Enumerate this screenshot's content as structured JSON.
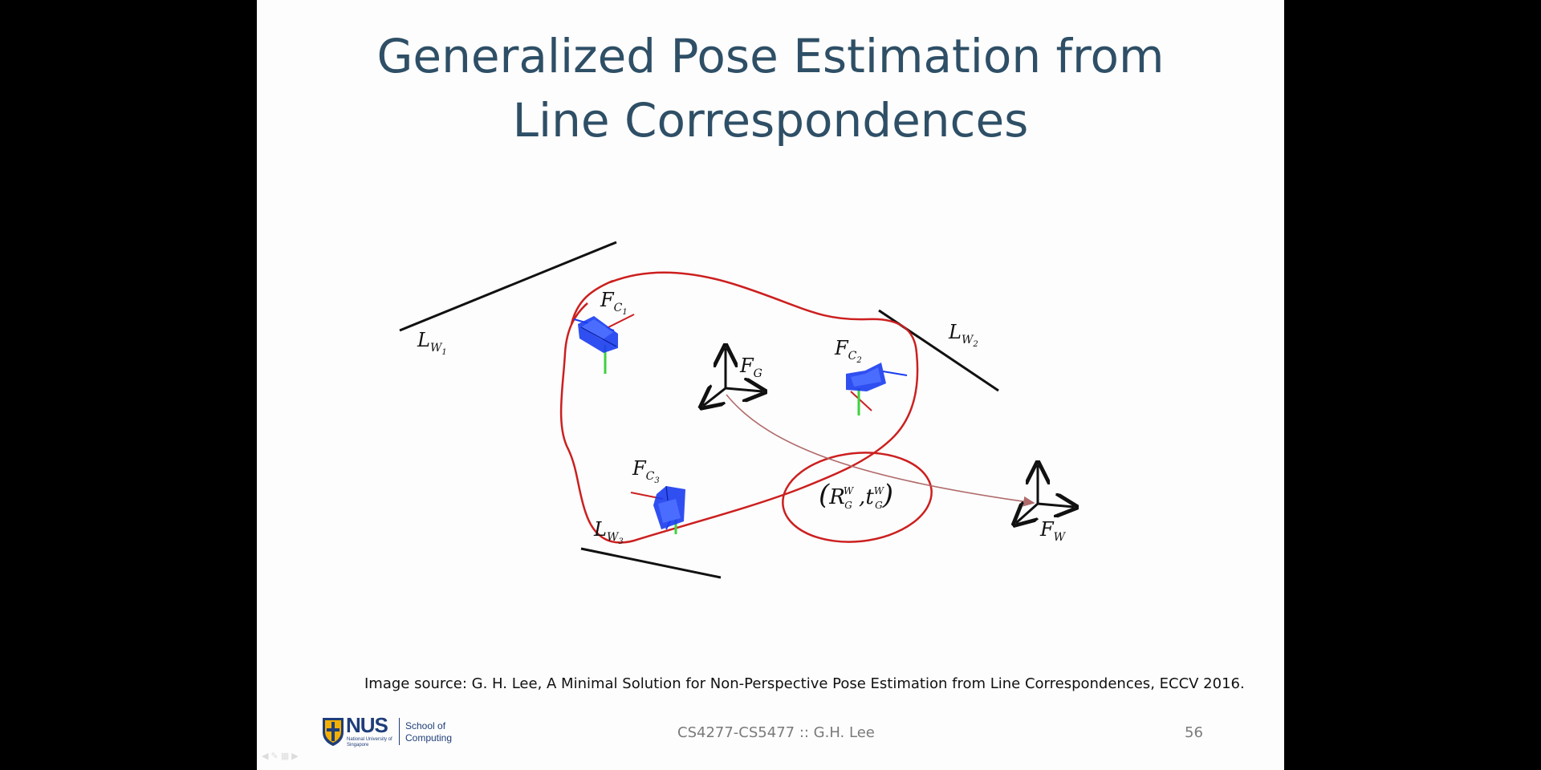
{
  "slide": {
    "title_line1": "Generalized Pose Estimation from",
    "title_line2": "Line Correspondences",
    "caption": "Image source: G. H. Lee, A Minimal Solution for Non-Perspective Pose Estimation from Line Correspondences, ECCV 2016.",
    "footer_course": "CS4277-CS5477 :: G.H. Lee",
    "page_number": "56"
  },
  "logo": {
    "wordmark": "NUS",
    "subline": "National University of Singapore",
    "school": "School of Computing"
  },
  "diagram": {
    "labels": {
      "lw1": {
        "base": "L",
        "sub": "W",
        "subsub": "1"
      },
      "lw2": {
        "base": "L",
        "sub": "W",
        "subsub": "2"
      },
      "lw3": {
        "base": "L",
        "sub": "W",
        "subsub": "3"
      },
      "fc1": {
        "base": "F",
        "sub": "C",
        "subsub": "1"
      },
      "fc2": {
        "base": "F",
        "sub": "C",
        "subsub": "2"
      },
      "fc3": {
        "base": "F",
        "sub": "C",
        "subsub": "3"
      },
      "fg": {
        "base": "F",
        "sub": "G"
      },
      "fw": {
        "base": "F",
        "sub": "W"
      },
      "transform": {
        "open": "(",
        "r": "R",
        "r_sup": "W",
        "r_sub": "G",
        "comma": " ,",
        "t": "t",
        "t_sup": "W",
        "t_sub": "G",
        "close": ")"
      }
    },
    "colors": {
      "annotation_red": "#cc1f1f",
      "camera_blue": "#1a3cf0",
      "arrow_maroon": "#b06a6a",
      "line_black": "#111111"
    }
  }
}
